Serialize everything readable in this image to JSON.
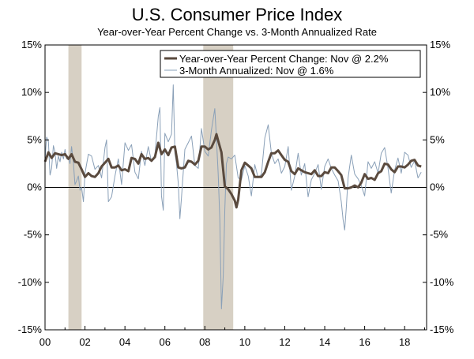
{
  "title": "U.S. Consumer Price Index",
  "subtitle": "Year-over-Year Percent Change vs. 3-Month Annualized Rate",
  "chart_data": {
    "type": "line",
    "title": "U.S. Consumer Price Index",
    "subtitle": "Year-over-Year Percent Change vs. 3-Month Annualized Rate",
    "xlim": [
      2000,
      2019.1
    ],
    "ylim": [
      -15,
      15
    ],
    "y_ticks": [
      15,
      10,
      5,
      0,
      -5,
      -10,
      -15
    ],
    "y_tick_labels": [
      "15%",
      "10%",
      "5%",
      "0%",
      "-5%",
      "-10%",
      "-15%"
    ],
    "x_ticks": [
      2000,
      2002,
      2004,
      2006,
      2008,
      2010,
      2012,
      2014,
      2016,
      2018
    ],
    "x_tick_labels": [
      "00",
      "02",
      "04",
      "06",
      "08",
      "10",
      "12",
      "14",
      "16",
      "18"
    ],
    "right_axis": true,
    "grid": false,
    "zero_line": true,
    "legend_position": "top-right",
    "recessions": [
      [
        2001.17,
        2001.83
      ],
      [
        2007.92,
        2009.42
      ]
    ],
    "colors": {
      "yoy": "#5a4a3e",
      "ann": "#8aa0b8",
      "recession": "#d7d0c4"
    },
    "series": [
      {
        "key": "yoy",
        "name": "Year-over-Year Percent Change: Nov @ 2.2%",
        "x": [
          2000.0,
          2000.17,
          2000.33,
          2000.5,
          2000.67,
          2000.83,
          2001.0,
          2001.17,
          2001.33,
          2001.5,
          2001.67,
          2001.83,
          2002.0,
          2002.17,
          2002.33,
          2002.5,
          2002.67,
          2002.83,
          2003.0,
          2003.17,
          2003.33,
          2003.5,
          2003.67,
          2003.83,
          2004.0,
          2004.17,
          2004.33,
          2004.5,
          2004.67,
          2004.83,
          2005.0,
          2005.17,
          2005.33,
          2005.5,
          2005.67,
          2005.83,
          2006.0,
          2006.17,
          2006.33,
          2006.5,
          2006.67,
          2006.83,
          2007.0,
          2007.17,
          2007.33,
          2007.5,
          2007.67,
          2007.83,
          2008.0,
          2008.17,
          2008.33,
          2008.5,
          2008.58,
          2008.67,
          2008.83,
          2009.0,
          2009.17,
          2009.33,
          2009.5,
          2009.58,
          2009.67,
          2009.83,
          2010.0,
          2010.17,
          2010.33,
          2010.5,
          2010.67,
          2010.83,
          2011.0,
          2011.17,
          2011.33,
          2011.5,
          2011.67,
          2011.83,
          2012.0,
          2012.17,
          2012.33,
          2012.5,
          2012.67,
          2012.83,
          2013.0,
          2013.17,
          2013.33,
          2013.5,
          2013.67,
          2013.83,
          2014.0,
          2014.17,
          2014.33,
          2014.5,
          2014.67,
          2014.83,
          2015.0,
          2015.17,
          2015.33,
          2015.5,
          2015.67,
          2015.83,
          2016.0,
          2016.17,
          2016.33,
          2016.5,
          2016.67,
          2016.83,
          2017.0,
          2017.17,
          2017.33,
          2017.5,
          2017.67,
          2017.83,
          2018.0,
          2018.17,
          2018.33,
          2018.5,
          2018.67,
          2018.83
        ],
        "values": [
          2.7,
          3.7,
          3.1,
          3.6,
          3.5,
          3.4,
          3.5,
          3.0,
          3.5,
          2.7,
          2.6,
          1.9,
          1.1,
          1.5,
          1.2,
          1.1,
          1.5,
          2.2,
          2.6,
          3.0,
          2.1,
          2.1,
          2.3,
          1.8,
          1.9,
          1.7,
          3.1,
          3.0,
          2.5,
          3.5,
          3.0,
          3.1,
          2.8,
          3.2,
          4.7,
          3.5,
          4.0,
          3.4,
          4.2,
          4.3,
          2.1,
          2.0,
          2.1,
          2.8,
          2.7,
          2.4,
          2.8,
          4.3,
          4.3,
          4.0,
          4.2,
          5.0,
          5.6,
          4.9,
          3.7,
          0.1,
          -0.2,
          -0.7,
          -1.4,
          -2.1,
          -1.3,
          1.8,
          2.6,
          2.3,
          2.0,
          1.1,
          1.1,
          1.1,
          1.6,
          2.7,
          3.6,
          3.6,
          3.9,
          3.4,
          2.9,
          2.7,
          1.7,
          1.4,
          2.0,
          1.8,
          1.6,
          1.5,
          1.4,
          1.8,
          1.2,
          1.2,
          1.6,
          1.5,
          2.1,
          2.1,
          1.7,
          1.3,
          -0.1,
          -0.1,
          0.0,
          0.2,
          0.0,
          0.5,
          1.4,
          0.9,
          1.0,
          0.8,
          1.5,
          1.7,
          2.5,
          2.4,
          1.9,
          1.6,
          2.2,
          2.2,
          2.1,
          2.4,
          2.8,
          2.9,
          2.3,
          2.2
        ]
      },
      {
        "key": "ann",
        "name": "3-Month Annualized: Nov @ 1.6%",
        "x": [
          2000.0,
          2000.08,
          2000.17,
          2000.25,
          2000.33,
          2000.42,
          2000.5,
          2000.58,
          2000.67,
          2000.75,
          2000.83,
          2000.92,
          2001.0,
          2001.08,
          2001.17,
          2001.25,
          2001.33,
          2001.42,
          2001.5,
          2001.58,
          2001.67,
          2001.75,
          2001.83,
          2001.92,
          2002.0,
          2002.17,
          2002.33,
          2002.5,
          2002.67,
          2002.83,
          2003.0,
          2003.08,
          2003.17,
          2003.33,
          2003.5,
          2003.67,
          2003.83,
          2004.0,
          2004.17,
          2004.33,
          2004.5,
          2004.67,
          2004.83,
          2005.0,
          2005.17,
          2005.33,
          2005.5,
          2005.67,
          2005.75,
          2005.83,
          2005.92,
          2006.0,
          2006.17,
          2006.33,
          2006.42,
          2006.5,
          2006.58,
          2006.67,
          2006.75,
          2006.83,
          2007.0,
          2007.17,
          2007.33,
          2007.5,
          2007.67,
          2007.83,
          2008.0,
          2008.17,
          2008.33,
          2008.5,
          2008.58,
          2008.67,
          2008.75,
          2008.83,
          2008.92,
          2009.0,
          2009.08,
          2009.17,
          2009.33,
          2009.5,
          2009.67,
          2009.83,
          2010.0,
          2010.17,
          2010.33,
          2010.5,
          2010.67,
          2010.83,
          2011.0,
          2011.17,
          2011.33,
          2011.5,
          2011.67,
          2011.83,
          2012.0,
          2012.17,
          2012.33,
          2012.5,
          2012.67,
          2012.83,
          2013.0,
          2013.17,
          2013.33,
          2013.5,
          2013.67,
          2013.83,
          2014.0,
          2014.17,
          2014.33,
          2014.5,
          2014.67,
          2014.83,
          2014.92,
          2015.0,
          2015.08,
          2015.17,
          2015.33,
          2015.5,
          2015.67,
          2015.83,
          2016.0,
          2016.17,
          2016.33,
          2016.5,
          2016.67,
          2016.83,
          2017.0,
          2017.17,
          2017.33,
          2017.5,
          2017.67,
          2017.83,
          2018.0,
          2018.17,
          2018.33,
          2018.5,
          2018.67,
          2018.83
        ],
        "values": [
          2.9,
          5.3,
          4.8,
          1.3,
          2.0,
          4.4,
          3.7,
          2.0,
          3.3,
          2.7,
          3.7,
          3.0,
          4.0,
          3.0,
          3.1,
          2.5,
          4.3,
          2.6,
          0.3,
          0.7,
          1.2,
          -0.3,
          0.0,
          -1.5,
          1.5,
          3.5,
          3.3,
          1.9,
          2.3,
          1.0,
          4.2,
          5.0,
          -1.5,
          -1.0,
          1.2,
          3.0,
          0.3,
          4.7,
          3.9,
          4.5,
          1.6,
          0.9,
          3.8,
          2.3,
          4.3,
          2.7,
          3.4,
          7.5,
          8.4,
          -0.9,
          -2.4,
          5.7,
          4.8,
          5.6,
          10.8,
          3.6,
          2.5,
          0.4,
          -3.3,
          -1.1,
          4.0,
          4.7,
          5.4,
          2.3,
          2.0,
          6.2,
          3.8,
          3.3,
          6.0,
          8.3,
          5.1,
          1.4,
          -3.5,
          -12.8,
          -9.3,
          -2.3,
          2.5,
          3.2,
          3.0,
          3.4,
          1.0,
          0.8,
          2.3,
          1.2,
          -0.9,
          2.4,
          1.0,
          1.4,
          5.2,
          6.6,
          3.6,
          2.5,
          3.0,
          1.5,
          2.2,
          4.3,
          -0.3,
          1.2,
          3.6,
          1.3,
          2.5,
          -1.0,
          0.8,
          1.5,
          2.4,
          -0.2,
          2.2,
          3.0,
          2.0,
          1.3,
          0.7,
          -1.5,
          -3.4,
          -4.5,
          -2.2,
          1.0,
          3.4,
          1.4,
          0.9,
          0.2,
          -0.9,
          2.7,
          2.0,
          2.7,
          1.5,
          3.6,
          4.2,
          2.0,
          -0.6,
          1.8,
          3.1,
          1.5,
          3.7,
          3.4,
          2.1,
          2.8,
          1.0,
          1.6
        ]
      }
    ]
  }
}
